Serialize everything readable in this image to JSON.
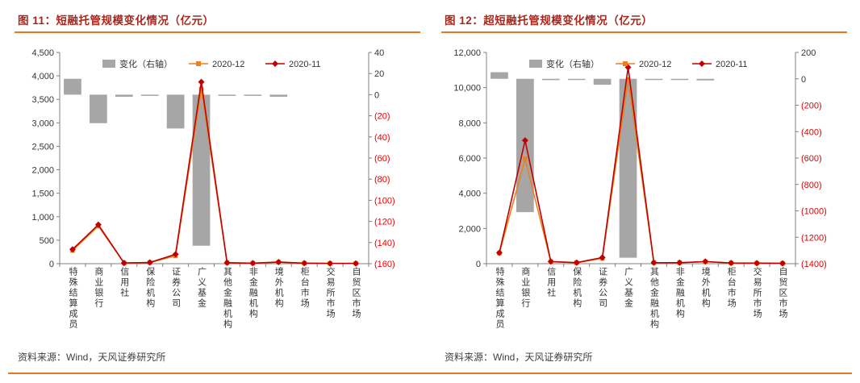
{
  "colors": {
    "title": "#a5281e",
    "accent_line": "#e87722",
    "bar": "#a6a6a6",
    "series_2020_12": "#e8821e",
    "series_2020_11": "#c00000",
    "axis": "#808080",
    "tick_label": "#333333",
    "negative_label": "#e60000",
    "source_text": "#404040"
  },
  "panels": [
    {
      "title": "图 11：短融托管规模变化情况（亿元）",
      "source": "资料来源：Wind，天风证券研究所"
    },
    {
      "title": "图 12：超短融托管规模变化情况（亿元）",
      "source": "资料来源：Wind，天风证券研究所"
    }
  ],
  "chart_data": [
    {
      "type": "combo-bar-line",
      "title": "图 11：短融托管规模变化情况（亿元）",
      "categories": [
        "特殊结算成员",
        "商业银行",
        "信用社",
        "保险机构",
        "证券公司",
        "广义基金",
        "其他金融机构",
        "非金融机构",
        "境外机构",
        "柜台市场",
        "交易所市场",
        "自贸区市场"
      ],
      "legend": [
        "变化（右轴）",
        "2020-12",
        "2020-11"
      ],
      "left_axis": {
        "min": 0,
        "max": 4500,
        "step": 500,
        "labels": [
          "4,500",
          "4,000",
          "3,500",
          "3,000",
          "2,500",
          "2,000",
          "1,500",
          "1,000",
          "500",
          "0"
        ]
      },
      "right_axis": {
        "min": -160,
        "max": 40,
        "step": 20,
        "labels": [
          "40",
          "20",
          "0",
          "(20)",
          "(40)",
          "(60)",
          "(80)",
          "(100)",
          "(120)",
          "(140)",
          "(160)"
        ]
      },
      "series": [
        {
          "name": "变化（右轴）",
          "type": "bar",
          "axis": "right",
          "values": [
            15,
            -27,
            -2,
            -1,
            -32,
            -143,
            -1,
            -1,
            -2,
            0,
            0,
            0
          ]
        },
        {
          "name": "2020-12",
          "type": "line",
          "axis": "left",
          "marker": "square",
          "values": [
            280,
            800,
            15,
            25,
            165,
            3720,
            20,
            10,
            30,
            10,
            5,
            5
          ]
        },
        {
          "name": "2020-11",
          "type": "line",
          "axis": "left",
          "marker": "diamond",
          "values": [
            305,
            830,
            15,
            25,
            200,
            3870,
            20,
            10,
            35,
            10,
            5,
            5
          ]
        }
      ]
    },
    {
      "type": "combo-bar-line",
      "title": "图 12：超短融托管规模变化情况（亿元）",
      "categories": [
        "特殊结算成员",
        "商业银行",
        "信用社",
        "保险机构",
        "证券公司",
        "广义基金",
        "其他金融机构",
        "非金融机构",
        "境外机构",
        "柜台市场",
        "交易所市场",
        "自贸区市场"
      ],
      "legend": [
        "变化（右轴）",
        "2020-12",
        "2020-11"
      ],
      "left_axis": {
        "min": 0,
        "max": 12000,
        "step": 2000,
        "labels": [
          "12,000",
          "10,000",
          "8,000",
          "6,000",
          "4,000",
          "2,000",
          "0"
        ]
      },
      "right_axis": {
        "min": -1400,
        "max": 200,
        "step": 200,
        "labels": [
          "200",
          "0",
          "(200)",
          "(400)",
          "(600)",
          "(800)",
          "(1000)",
          "(1200)",
          "(1400)"
        ]
      },
      "series": [
        {
          "name": "变化（右轴）",
          "type": "bar",
          "axis": "right",
          "values": [
            50,
            -1010,
            -10,
            -5,
            -45,
            -1355,
            -5,
            -5,
            -12,
            0,
            0,
            0
          ]
        },
        {
          "name": "2020-12",
          "type": "line",
          "axis": "left",
          "marker": "square",
          "values": [
            600,
            5950,
            110,
            55,
            300,
            10450,
            60,
            55,
            110,
            40,
            30,
            20
          ]
        },
        {
          "name": "2020-11",
          "type": "line",
          "axis": "left",
          "marker": "diamond",
          "values": [
            620,
            7000,
            120,
            60,
            350,
            11150,
            60,
            55,
            120,
            40,
            30,
            20
          ]
        }
      ]
    }
  ]
}
